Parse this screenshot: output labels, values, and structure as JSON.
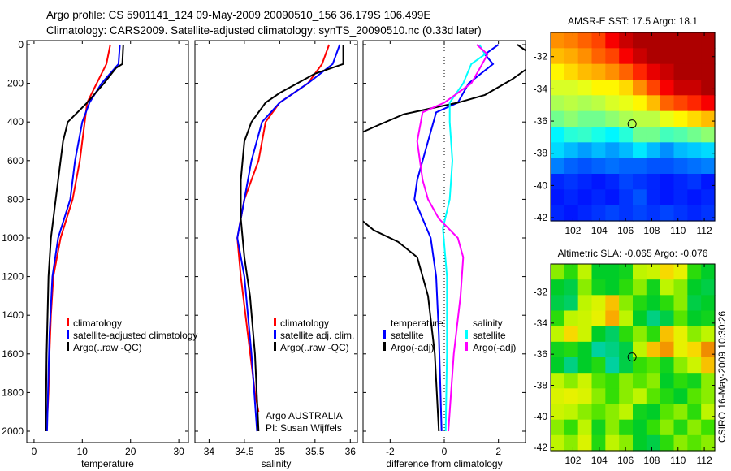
{
  "header": {
    "line1": "Argo profile: CS 5901141_124 09-May-2009 20090510_156 36.179S 106.499E",
    "line2": "Climatology: CARS2009. Satellite-adjusted climatology: synTS_20090510.nc (0.33d later)"
  },
  "side_label": "CSIRO 16-May-2009 10:30:26",
  "chart_data": [
    {
      "id": "temperature",
      "type": "line",
      "xlabel": "temperature",
      "xlim": [
        -1.5,
        32
      ],
      "xticks": [
        0,
        10,
        20,
        30
      ],
      "ylim": [
        2050,
        -30
      ],
      "yticks": [
        0,
        200,
        400,
        600,
        800,
        1000,
        1200,
        1400,
        1600,
        1800,
        2000
      ],
      "legend": {
        "placement": "lower-middle",
        "entries": [
          "climatology",
          "satellite-adjusted climatology",
          "Argo(..raw -QC)"
        ]
      },
      "series": [
        {
          "name": "climatology",
          "color": "#ff0000",
          "points": [
            [
              15.8,
              0
            ],
            [
              15.0,
              100
            ],
            [
              13,
              200
            ],
            [
              11,
              300
            ],
            [
              10.5,
              400
            ],
            [
              9.5,
              600
            ],
            [
              8,
              800
            ],
            [
              5.5,
              1000
            ],
            [
              4,
              1200
            ],
            [
              3.5,
              1400
            ],
            [
              3.2,
              1600
            ],
            [
              3,
              1800
            ],
            [
              2.8,
              1900
            ]
          ]
        },
        {
          "name": "satellite-adjusted climatology",
          "color": "#0000ff",
          "points": [
            [
              17.8,
              0
            ],
            [
              17.5,
              100
            ],
            [
              14,
              200
            ],
            [
              11.5,
              300
            ],
            [
              10,
              400
            ],
            [
              8.5,
              600
            ],
            [
              7.5,
              800
            ],
            [
              5,
              1000
            ],
            [
              3.8,
              1200
            ],
            [
              3.2,
              1500
            ],
            [
              2.7,
              2000
            ]
          ]
        },
        {
          "name": "Argo(..raw -QC)",
          "color": "#000000",
          "points": [
            [
              18.5,
              0
            ],
            [
              18.3,
              100
            ],
            [
              17,
              120
            ],
            [
              14.5,
              200
            ],
            [
              11,
              300
            ],
            [
              7,
              400
            ],
            [
              6,
              500
            ],
            [
              5.5,
              600
            ],
            [
              4.5,
              800
            ],
            [
              3.5,
              1000
            ],
            [
              3,
              1200
            ],
            [
              2.6,
              1600
            ],
            [
              2.4,
              2000
            ]
          ]
        }
      ]
    },
    {
      "id": "salinity",
      "type": "line",
      "xlabel": "salinity",
      "xlim": [
        33.8,
        36.1
      ],
      "xticks": [
        34,
        34.5,
        35,
        35.5,
        36
      ],
      "ylim": [
        2050,
        -30
      ],
      "legend": {
        "placement": "lower-right",
        "entries": [
          "climatology",
          "satellite adj. clim.",
          "Argo(..raw -QC)"
        ]
      },
      "annotation": [
        "Argo AUSTRALIA",
        "PI: Susan Wijffels"
      ],
      "series": [
        {
          "name": "climatology",
          "color": "#ff0000",
          "points": [
            [
              35.7,
              0
            ],
            [
              35.6,
              100
            ],
            [
              35.4,
              200
            ],
            [
              35.0,
              300
            ],
            [
              34.8,
              400
            ],
            [
              34.7,
              600
            ],
            [
              34.5,
              800
            ],
            [
              34.4,
              1000
            ],
            [
              34.45,
              1200
            ],
            [
              34.55,
              1500
            ],
            [
              34.65,
              1800
            ],
            [
              34.7,
              1900
            ]
          ]
        },
        {
          "name": "satellite adj. clim.",
          "color": "#0000ff",
          "points": [
            [
              35.85,
              0
            ],
            [
              35.75,
              100
            ],
            [
              35.4,
              200
            ],
            [
              35.0,
              300
            ],
            [
              34.75,
              400
            ],
            [
              34.6,
              600
            ],
            [
              34.5,
              800
            ],
            [
              34.4,
              1000
            ],
            [
              34.5,
              1200
            ],
            [
              34.6,
              1600
            ],
            [
              34.68,
              2000
            ]
          ]
        },
        {
          "name": "Argo(..raw -QC)",
          "color": "#000000",
          "points": [
            [
              35.9,
              0
            ],
            [
              35.9,
              100
            ],
            [
              35.5,
              150
            ],
            [
              35.0,
              250
            ],
            [
              34.8,
              300
            ],
            [
              34.6,
              400
            ],
            [
              34.5,
              500
            ],
            [
              34.45,
              700
            ],
            [
              34.45,
              900
            ],
            [
              34.5,
              1100
            ],
            [
              34.58,
              1300
            ],
            [
              34.65,
              1600
            ],
            [
              34.7,
              2000
            ]
          ]
        }
      ]
    },
    {
      "id": "difference",
      "type": "line",
      "xlabel": "difference from climatology",
      "xlim": [
        -3,
        3
      ],
      "xticks": [
        -2,
        0,
        2
      ],
      "ylim": [
        2050,
        -30
      ],
      "legend": {
        "placement": "lower-middle",
        "groups": [
          "temperature",
          "salinity"
        ],
        "entries": [
          "satellite",
          "Argo(-adj)",
          "satellite",
          "Argo(-adj)"
        ]
      },
      "series": [
        {
          "name": "temperature satellite",
          "color": "#0000ff",
          "points": [
            [
              2.0,
              0
            ],
            [
              1.5,
              50
            ],
            [
              1.8,
              100
            ],
            [
              0.9,
              200
            ],
            [
              0.5,
              300
            ],
            [
              -0.3,
              350
            ],
            [
              -0.6,
              500
            ],
            [
              -1.0,
              700
            ],
            [
              -1.1,
              800
            ],
            [
              -0.8,
              900
            ],
            [
              -0.5,
              1000
            ],
            [
              -0.3,
              1200
            ],
            [
              -0.2,
              1500
            ],
            [
              -0.1,
              2000
            ]
          ]
        },
        {
          "name": "temperature Argo(-adj)",
          "color": "#000000",
          "points": [
            [
              2.7,
              0
            ],
            [
              3.3,
              60
            ],
            [
              3.3,
              100
            ],
            [
              2.5,
              180
            ],
            [
              1.5,
              260
            ],
            [
              0.5,
              300
            ],
            [
              -0.5,
              330
            ],
            [
              -1.5,
              360
            ],
            [
              -2.5,
              420
            ],
            [
              -3.3,
              470
            ]
          ]
        },
        {
          "name": "temperature Argo(-adj) deep",
          "color": "#000000",
          "points": [
            [
              -3.3,
              880
            ],
            [
              -2.6,
              960
            ],
            [
              -1.7,
              1020
            ],
            [
              -1.0,
              1100
            ],
            [
              -0.6,
              1300
            ],
            [
              -0.35,
              1600
            ],
            [
              -0.2,
              2000
            ]
          ]
        },
        {
          "name": "salinity satellite",
          "color": "#00ffff",
          "points": [
            [
              1.3,
              0
            ],
            [
              1.5,
              50
            ],
            [
              1.0,
              100
            ],
            [
              0.7,
              200
            ],
            [
              0.2,
              300
            ],
            [
              0.2,
              400
            ],
            [
              0.3,
              600
            ],
            [
              0.2,
              800
            ],
            [
              -0.05,
              950
            ],
            [
              0.1,
              1200
            ],
            [
              0.1,
              1600
            ],
            [
              0.05,
              2000
            ]
          ]
        },
        {
          "name": "salinity Argo(-adj)",
          "color": "#ff00ff",
          "points": [
            [
              1.2,
              0
            ],
            [
              1.6,
              50
            ],
            [
              1.4,
              100
            ],
            [
              1.0,
              200
            ],
            [
              0.0,
              300
            ],
            [
              -0.8,
              350
            ],
            [
              -1.0,
              500
            ],
            [
              -0.8,
              700
            ],
            [
              -0.6,
              800
            ],
            [
              -0.2,
              900
            ],
            [
              0.5,
              1000
            ],
            [
              0.7,
              1100
            ],
            [
              0.6,
              1300
            ],
            [
              0.35,
              1600
            ],
            [
              0.15,
              2000
            ]
          ]
        }
      ]
    },
    {
      "id": "sst-map",
      "type": "heatmap",
      "title": "AMSR-E SST: 17.5 Argo: 18.1",
      "xlim": [
        100.3,
        112.8
      ],
      "ylim": [
        -42.2,
        -30.5
      ],
      "xticks": [
        102,
        104,
        106,
        108,
        110,
        112
      ],
      "yticks": [
        -32,
        -34,
        -36,
        -38,
        -40,
        -42
      ],
      "marker": [
        106.499,
        -36.179
      ],
      "vrange": [
        13.5,
        20.3
      ],
      "values": [
        [
          18.5,
          18.6,
          18.8,
          19,
          19.5,
          19.8,
          20,
          20,
          20,
          20,
          20,
          20
        ],
        [
          18.2,
          18.3,
          18.5,
          18.8,
          19,
          19.5,
          19.8,
          20,
          20,
          20,
          20,
          20
        ],
        [
          17.8,
          18,
          18.2,
          18.3,
          18.5,
          18.8,
          19.2,
          19.6,
          19.8,
          20,
          20,
          20
        ],
        [
          17.5,
          17.5,
          17.6,
          17.8,
          17.8,
          18,
          18.5,
          19,
          19.5,
          19.8,
          19.8,
          20
        ],
        [
          17.2,
          17.3,
          17.2,
          17.3,
          17.5,
          17.6,
          17.8,
          18.2,
          18.8,
          19,
          19.2,
          19.5
        ],
        [
          16.8,
          17,
          16.8,
          16.8,
          17,
          17.2,
          17.3,
          17.3,
          17.6,
          17.8,
          18,
          18.2
        ],
        [
          16,
          16.3,
          16.4,
          16.2,
          16,
          16.3,
          16.8,
          16.8,
          16.5,
          16.6,
          16.8,
          17
        ],
        [
          15.8,
          15.6,
          15.4,
          15.6,
          15.4,
          15.6,
          15.9,
          15.6,
          15.3,
          15.6,
          15.7,
          15.8
        ],
        [
          15.2,
          15,
          14.9,
          15,
          15.1,
          15,
          15,
          14.9,
          14.9,
          15,
          15.1,
          15.2
        ],
        [
          14.6,
          14.7,
          14.6,
          14.5,
          14.6,
          14.8,
          14.7,
          14.6,
          14.5,
          14.6,
          14.7,
          14.5
        ],
        [
          14.5,
          14.6,
          14.5,
          14.6,
          14.5,
          14.7,
          14.9,
          14.6,
          14.5,
          14.6,
          14.5,
          14.6
        ],
        [
          14.6,
          14.5,
          14.6,
          14.7,
          14.8,
          14.7,
          14.8,
          14.7,
          14.8,
          14.7,
          14.6,
          14.7
        ]
      ]
    },
    {
      "id": "sla-map",
      "type": "heatmap",
      "title": "Altimetric SLA: -0.065 Argo: -0.076",
      "xlim": [
        100.3,
        112.8
      ],
      "ylim": [
        -42.2,
        -30.2
      ],
      "xticks": [
        102,
        104,
        106,
        108,
        110,
        112
      ],
      "yticks": [
        -32,
        -34,
        -36,
        -38,
        -40,
        -42
      ],
      "marker": [
        106.499,
        -36.179
      ],
      "values": [
        [
          0.0,
          -0.05,
          0.02,
          -0.1,
          -0.1,
          -0.08,
          0.02,
          0.03,
          0.08,
          0.05,
          -0.05,
          -0.1
        ],
        [
          -0.1,
          -0.12,
          0.0,
          -0.08,
          -0.1,
          -0.05,
          0.0,
          -0.08,
          0.02,
          0.0,
          -0.1,
          -0.12
        ],
        [
          -0.12,
          -0.14,
          0.02,
          0.04,
          0.1,
          0.0,
          -0.06,
          -0.1,
          -0.05,
          0.0,
          -0.12,
          -0.1
        ],
        [
          -0.05,
          0.02,
          0.03,
          0.05,
          0.12,
          0.02,
          -0.1,
          -0.16,
          -0.12,
          -0.02,
          -0.1,
          -0.08
        ],
        [
          0.02,
          0.08,
          0.03,
          -0.1,
          -0.14,
          -0.05,
          0.0,
          -0.05,
          0.1,
          0.05,
          0.0,
          0.02
        ],
        [
          -0.08,
          -0.06,
          -0.1,
          -0.18,
          -0.16,
          -0.12,
          0.02,
          0.1,
          0.14,
          0.05,
          0.08,
          0.15
        ],
        [
          -0.1,
          -0.16,
          -0.1,
          -0.06,
          -0.18,
          -0.12,
          -0.04,
          -0.02,
          -0.08,
          0.0,
          0.03,
          0.1
        ],
        [
          0.02,
          0.0,
          0.03,
          -0.02,
          -0.04,
          0.0,
          -0.02,
          0.0,
          -0.1,
          -0.05,
          -0.08,
          0.0
        ],
        [
          0.04,
          0.05,
          0.04,
          0.0,
          -0.04,
          0.0,
          0.02,
          -0.02,
          -0.06,
          -0.1,
          -0.02,
          0.0
        ],
        [
          0.03,
          0.02,
          0.0,
          -0.02,
          0.0,
          0.02,
          -0.08,
          -0.1,
          -0.02,
          0.0,
          -0.05,
          0.02
        ],
        [
          0.0,
          -0.04,
          0.02,
          -0.08,
          0.0,
          -0.06,
          -0.1,
          -0.04,
          0.0,
          -0.06,
          0.0,
          -0.03
        ],
        [
          0.02,
          0.0,
          0.04,
          -0.06,
          0.02,
          0.0,
          -0.1,
          -0.12,
          -0.05,
          0.0,
          -0.02,
          0.0
        ]
      ]
    }
  ]
}
